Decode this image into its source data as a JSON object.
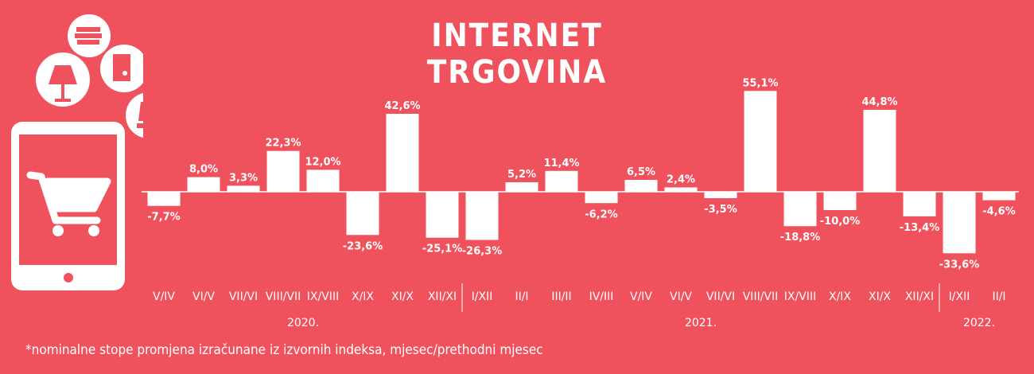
{
  "title": "INTERNET TRGOVINA",
  "footnote": "*nominalne stope promjena izračunane iz izvornih indeksa, mjesec/prethodni mjesec",
  "colors": {
    "background": "#f0525d",
    "bar": "#ffffff",
    "icon_fill": "#f0525d"
  },
  "icons": [
    "tablet-icon",
    "shopping-cart-icon",
    "lamp-icon",
    "books-icon",
    "fridge-icon",
    "clothing-icon"
  ],
  "chart_data": {
    "type": "bar",
    "title": "INTERNET TRGOVINA",
    "categories": [
      "V/IV",
      "VI/V",
      "VII/VI",
      "VIII/VII",
      "IX/VIII",
      "X/IX",
      "XI/X",
      "XII/XI",
      "I/XII",
      "II/I",
      "III/II",
      "IV/III",
      "V/IV",
      "VI/V",
      "VII/VI",
      "VIII/VII",
      "IX/VIII",
      "X/IX",
      "XI/X",
      "XII/XI",
      "I/XII",
      "II/I"
    ],
    "values": [
      -7.7,
      8.0,
      3.3,
      22.3,
      12.0,
      -23.6,
      42.6,
      -25.1,
      -26.3,
      5.2,
      11.4,
      -6.2,
      6.5,
      2.4,
      -3.5,
      55.1,
      -18.8,
      -10.0,
      44.8,
      -13.4,
      -33.6,
      -4.6
    ],
    "value_labels": [
      "-7,7%",
      "8,0%",
      "3,3%",
      "22,3%",
      "12,0%",
      "-23,6%",
      "42,6%",
      "-25,1%",
      "-26,3%",
      "5,2%",
      "11,4%",
      "-6,2%",
      "6,5%",
      "2,4%",
      "-3,5%",
      "55,1%",
      "-18,8%",
      "-10,0%",
      "44,8%",
      "-13,4%",
      "-33,6%",
      "-4,6%"
    ],
    "years": [
      {
        "label": "2020.",
        "from": 0,
        "to": 7
      },
      {
        "label": "2021.",
        "from": 8,
        "to": 19
      },
      {
        "label": "2022.",
        "from": 20,
        "to": 21
      }
    ],
    "grid": false,
    "legend": "none"
  }
}
